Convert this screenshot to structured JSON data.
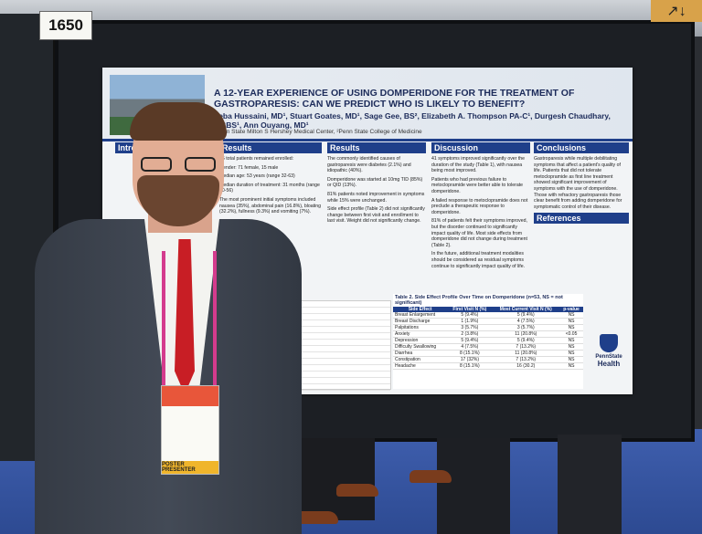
{
  "booth_number": "1650",
  "poster": {
    "title": "A 12-YEAR EXPERIENCE OF USING DOMPERIDONE FOR THE TREATMENT OF GASTROPARESIS: CAN WE PREDICT WHO IS LIKELY TO BENEFIT?",
    "authors": "Zeba Hussaini, MD¹, Stuart Goates, MD¹, Sage Gee, BS², Elizabeth A. Thompson PA-C¹, Durgesh Chaudhary, MBBS¹, Ann Ouyang, MD¹",
    "affiliation": "¹Penn State Milton S Hershey Medical Center, ²Penn State College of Medicine",
    "sections": {
      "intro": "Intro",
      "results1": "Results",
      "results2": "Results",
      "discussion": "Discussion",
      "conclusions": "Conclusions",
      "references": "References"
    },
    "results1_text": [
      "86 total patients remained enrolled:",
      "Gender: 71 female, 15 male",
      "Median age: 53 years (range 32-63)",
      "Median duration of treatment: 31 months (range 10-56)",
      "The most prominent initial symptoms included nausea (35%), abdominal pain (16.8%), bloating (32.2%), fullness (9.3%) and vomiting (7%)."
    ],
    "results2_text": [
      "The commonly identified causes of gastroparesis were diabetes (2.1%) and idiopathic (40%).",
      "Domperidone was started at 10mg TID (85%) or QID (13%).",
      "81% patients noted improvement in symptoms while 15% were unchanged.",
      "Side effect profile (Table 2) did not significantly change between first visit and enrollment to last visit. Weight did not significantly change."
    ],
    "discussion_text": [
      "41 symptoms improved significantly over the duration of the study (Table 1), with nausea being most improved.",
      "Patients who had previous failure to metoclopramide were better able to tolerate domperidone.",
      "A failed response to metoclopramide does not preclude a therapeutic response to domperidone.",
      "81% of patients felt their symptoms improved, but the disorder continued to significantly impact quality of life. Most side effects from domperidone did not change during treatment (Table 2).",
      "In the future, additional treatment modalities should be considered as residual symptoms continue to significantly impact quality of life."
    ],
    "conclusions_text": [
      "Gastroparesis while multiple debilitating symptoms that affect a patient's quality of life. Patients that did not tolerate metoclopramide as first line treatment showed significant improvement of symptoms with the use of domperidone. Those with refractory gastroparesis those clear benefit from adding domperidone for symptomatic control of their disease."
    ],
    "table2": {
      "title": "Table 2. Side Effect Profile Over Time on Domperidone (n=53, NS = not significant)",
      "headers": [
        "Side Effect",
        "First Visit N (%)",
        "Most Current Visit N (%)",
        "p-value"
      ],
      "rows": [
        [
          "Breast Enlargement",
          "5 (9.4%)",
          "5 (9.4%)",
          "NS"
        ],
        [
          "Breast Discharge",
          "1 (1.9%)",
          "4 (7.5%)",
          "NS"
        ],
        [
          "Palpitations",
          "3 (5.7%)",
          "3 (5.7%)",
          "NS"
        ],
        [
          "Anxiety",
          "2 (3.8%)",
          "11 (20.8%)",
          "<0.05"
        ],
        [
          "Depression",
          "5 (9.4%)",
          "5 (9.4%)",
          "NS"
        ],
        [
          "Difficulty Swallowing",
          "4 (7.5%)",
          "7 (13.2%)",
          "NS"
        ],
        [
          "Diarrhea",
          "8 (15.1%)",
          "11 (20.8%)",
          "NS"
        ],
        [
          "Constipation",
          "17 (32%)",
          "7 (13.2%)",
          "NS"
        ],
        [
          "Headache",
          "8 (15.1%)",
          "16 (30.2)",
          "NS"
        ]
      ]
    },
    "logo_name": "PennState",
    "logo_health": "Health"
  },
  "badge_label": "POSTER PRESENTER",
  "exit_sign": "↗↓",
  "colors": {
    "poster_blue": "#1f3f8a",
    "tie_red": "#c81e25",
    "floor_blue": "#3f5fae"
  }
}
